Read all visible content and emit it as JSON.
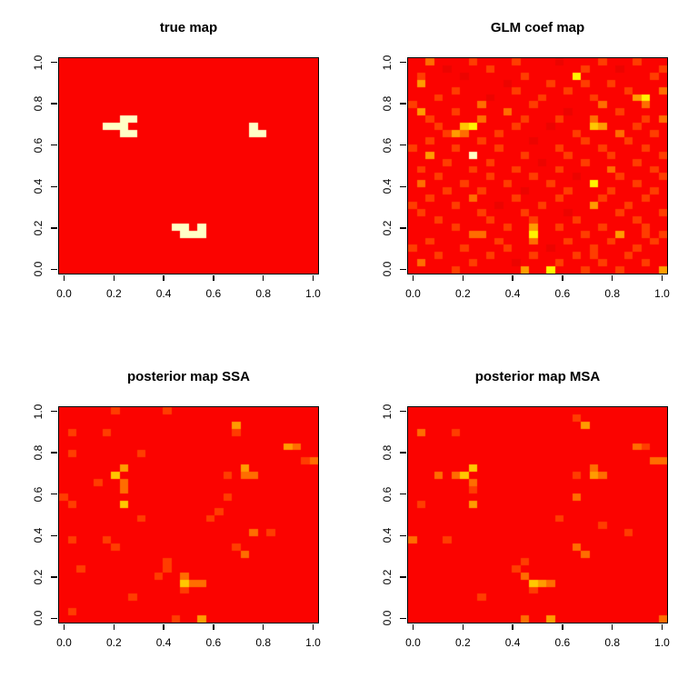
{
  "figure": {
    "description": "2x2 grid of R-style image() heatmap panels on white background",
    "background_color": "#ffffff",
    "box_border_color": "#000000",
    "text_color": "#000000",
    "colormap": "heat colors: red = low, orange/yellow = mid, cream = high"
  },
  "axis": {
    "x_ticks": [
      "0.0",
      "0.2",
      "0.4",
      "0.6",
      "0.8",
      "1.0"
    ],
    "y_ticks": [
      "0.0",
      "0.2",
      "0.4",
      "0.6",
      "0.8",
      "1.0"
    ],
    "x_range": [
      0,
      1
    ],
    "y_range": [
      0,
      1
    ],
    "range_padding_fraction": 0.02
  },
  "palette": {
    "description": "grid row-string character to cell fill color",
    "colors": {
      ".": "#FB0300",
      "d": "#EC0400",
      "1": "#FF3D00",
      "2": "#FF6D00",
      "3": "#FF9C00",
      "4": "#FFC800",
      "5": "#FFF300",
      "6": "#FFFFC6"
    }
  },
  "chart_data": [
    {
      "type": "heatmap",
      "title": "true map",
      "grid_cols": 30,
      "grid_rows": 30,
      "row_order": "top-to-bottom (rows[0] is y=1.0)",
      "x_range": [
        0,
        1
      ],
      "y_range": [
        0,
        1
      ],
      "rows": [
        "..............................",
        "..............................",
        "..............................",
        "..............................",
        "..............................",
        "..............................",
        "..............................",
        "..............................",
        ".......66.....................",
        ".....666..............6.......",
        ".......66.............66......",
        "..............................",
        "..............................",
        "..............................",
        "..............................",
        "..............................",
        "..............................",
        "..............................",
        "..............................",
        "..............................",
        "..............................",
        "..............................",
        "..............................",
        ".............66.6.............",
        "..............666.............",
        "..............................",
        "..............................",
        "..............................",
        "..............................",
        ".............................."
      ]
    },
    {
      "type": "heatmap",
      "title": "GLM coef map",
      "grid_cols": 30,
      "grid_rows": 30,
      "row_order": "top-to-bottom (rows[0] is y=1.0)",
      "x_range": [
        0,
        1
      ],
      "y_range": [
        0,
        1
      ],
      "rows": [
        "..2....1....1....d....1...1...",
        "....d....1..........1...d....1",
        ".1....d......1.....5........1.",
        ".3.........d....1...1..1......",
        ".....1......1.....1......1...2",
        "...1.....d.....1.....1....35..",
        "1.......2.....1.......2....2..",
        ".3...1.....2......d.....1.....",
        "..1.....2....1...1...2.....1.2",
        "...1..45....1...d....43...1...",
        "....132...1........1....2...1.",
        "..1.....1.....d.....1....1....",
        "1....1....1......1....1....1..",
        "..3....6.....1....1....1.....1",
        "....1....1.....d....1.....1...",
        ".1.....1....1....1.....2....1.",
        "...1.....1....1....d....1....1",
        ".2....1....1....1....5....1...",
        "....1...1....d....1....1....1.",
        "..1....2....1....1....1....1..",
        "1....1....d....1.....3...1....",
        ".1......1....1....d.....1....1",
        "...1.....1....1....1......1...",
        ".....1.....1..3..1....1....1..",
        ".......22.....5.....1...3..1.1",
        "..1.......1...2...1....1....1.",
        "1.....1....1....d....1....1...",
        "...1.....1....1....1.1...1....",
        ".2.....1....d....1....1....1..",
        ".....1.......3..5...1...1....3"
      ]
    },
    {
      "type": "heatmap",
      "title": "posterior map SSA",
      "grid_cols": 30,
      "grid_rows": 30,
      "row_order": "top-to-bottom (rows[0] is y=1.0)",
      "x_range": [
        0,
        1
      ],
      "y_range": [
        0,
        1
      ],
      "rows": [
        "......1.....1.................",
        "..............................",
        "....................3.........",
        ".1...1..............1.........",
        "..............................",
        "..........................32..",
        ".1.......1....................",
        "............................12",
        ".......3.............3........",
        "......4............1.22.......",
        "....1..2......................",
        ".......2......................",
        "1..................1..........",
        ".1.....4......................",
        "..................1...........",
        ".........1.......1............",
        "..............................",
        "......................2.1.....",
        ".1...1........................",
        "......1.............1.........",
        ".....................2........",
        "............1.................",
        "..1.........1.................",
        "...........1..2...............",
        "..............422.............",
        "..............1...............",
        "........1.....................",
        "..............................",
        ".1............................",
        ".............1..3............."
      ]
    },
    {
      "type": "heatmap",
      "title": "posterior map MSA",
      "grid_cols": 30,
      "grid_rows": 30,
      "row_order": "top-to-bottom (rows[0] is y=1.0)",
      "x_range": [
        0,
        1
      ],
      "y_range": [
        0,
        1
      ],
      "rows": [
        "..............................",
        "...................1..........",
        "....................3.........",
        ".2...1........................",
        "..............................",
        "..........................21..",
        "..............................",
        "............................22",
        ".......4.............2........",
        "...2.24............1.32.......",
        ".......2......................",
        ".......1......................",
        "...................2..........",
        ".1.....3......................",
        "..............................",
        ".................1............",
        "......................1.......",
        ".........................1....",
        "2...1.........................",
        "...................2..........",
        "....................2.........",
        ".............1................",
        "............1.................",
        ".............2................",
        "..............432.............",
        "..............1...............",
        "........1.....................",
        "..............................",
        "..............................",
        ".............2..3............2"
      ]
    }
  ]
}
